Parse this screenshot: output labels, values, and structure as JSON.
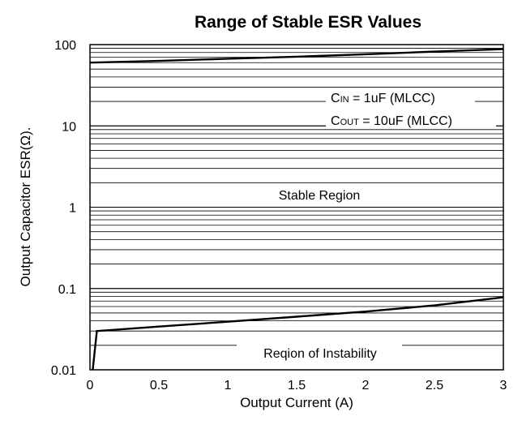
{
  "chart_data": {
    "type": "line",
    "title": "Range of Stable ESR Values",
    "xlabel": "Output Current (A)",
    "ylabel": "Output Capacitor ESR(Ω).",
    "x_scale": "linear",
    "y_scale": "log",
    "xlim": [
      0,
      3
    ],
    "ylim": [
      0.01,
      100
    ],
    "x_ticks": [
      "0",
      "0.5",
      "1",
      "1.5",
      "2",
      "2.5",
      "3"
    ],
    "y_ticks": [
      "0.01",
      "0.1",
      "1",
      "10",
      "100"
    ],
    "grid": "horizontal log minor gridlines",
    "series": [
      {
        "points": [
          [
            0,
            60
          ],
          [
            0.5,
            63
          ],
          [
            1,
            67
          ],
          [
            1.5,
            71
          ],
          [
            2,
            76
          ],
          [
            2.5,
            82
          ],
          [
            3,
            88
          ]
        ]
      },
      {
        "points": [
          [
            0.02,
            0.01
          ],
          [
            0.05,
            0.03
          ],
          [
            0.5,
            0.034
          ],
          [
            1,
            0.039
          ],
          [
            1.5,
            0.045
          ],
          [
            2,
            0.052
          ],
          [
            2.5,
            0.062
          ],
          [
            3,
            0.078
          ]
        ]
      }
    ],
    "annotations": {
      "cin": {
        "prefix": "C",
        "sub": "IN",
        "suffix": " = 1uF (MLCC)"
      },
      "cout": {
        "prefix": "C",
        "sub": "OUT",
        "suffix": " = 10uF (MLCC)"
      },
      "stable": "Stable Region",
      "unstable": "Reqion of Instability"
    }
  }
}
